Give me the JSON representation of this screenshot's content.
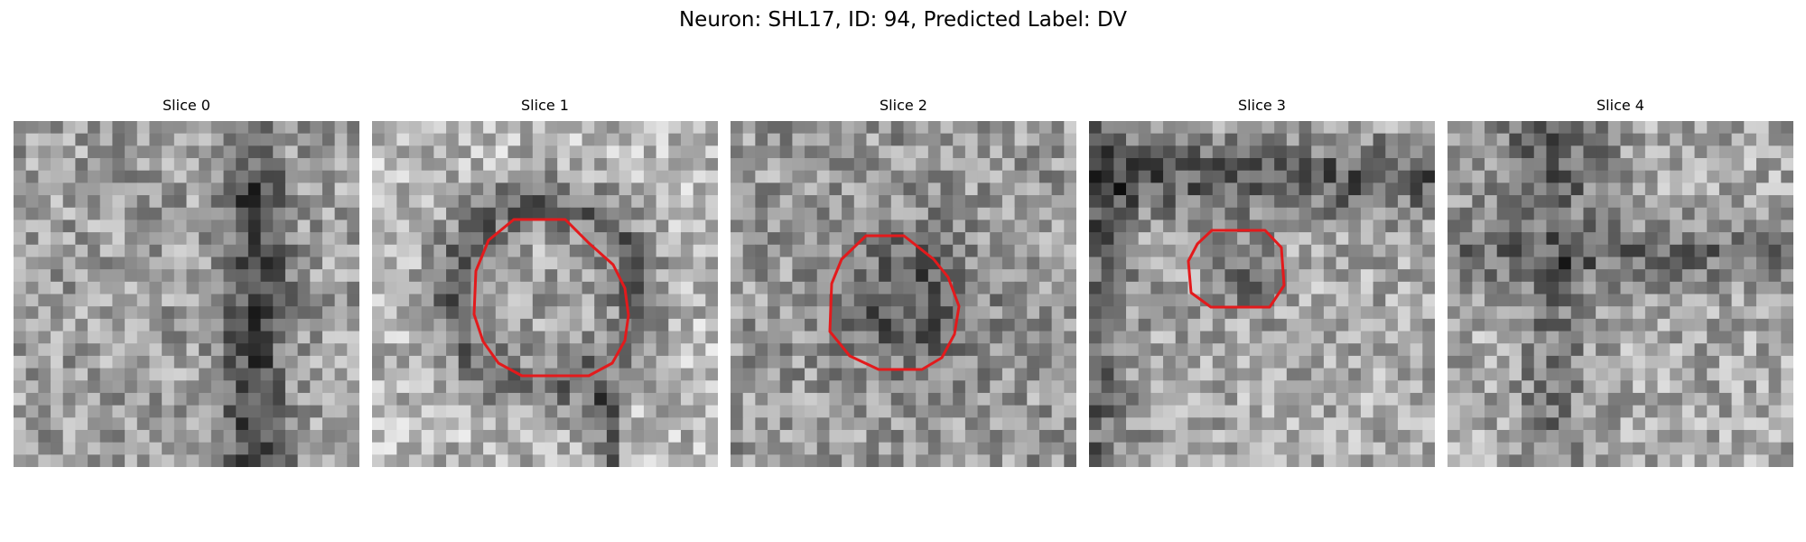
{
  "figure": {
    "title": "Neuron: SHL17, ID: 94, Predicted Label: DV"
  },
  "panels": [
    {
      "title": "Slice 0",
      "seed": 11,
      "has_outline": false
    },
    {
      "title": "Slice 1",
      "seed": 23,
      "has_outline": true
    },
    {
      "title": "Slice 2",
      "seed": 37,
      "has_outline": true
    },
    {
      "title": "Slice 3",
      "seed": 51,
      "has_outline": true
    },
    {
      "title": "Slice 4",
      "seed": 67,
      "has_outline": false
    }
  ],
  "colors": {
    "outline": "#e31a1c",
    "background": "#ffffff"
  }
}
